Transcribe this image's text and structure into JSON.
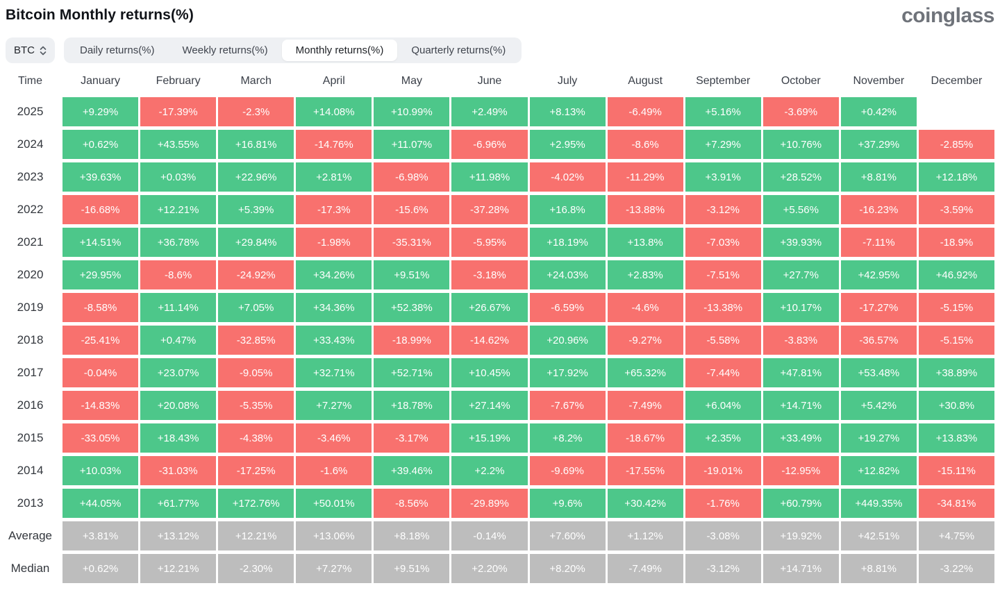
{
  "header": {
    "title": "Bitcoin Monthly returns(%)",
    "logo": "coinglass"
  },
  "controls": {
    "coin": "BTC",
    "tabs": [
      {
        "label": "Daily returns(%)",
        "active": false
      },
      {
        "label": "Weekly returns(%)",
        "active": false
      },
      {
        "label": "Monthly returns(%)",
        "active": true
      },
      {
        "label": "Quarterly returns(%)",
        "active": false
      }
    ]
  },
  "colors": {
    "positive": "#4dc78a",
    "negative": "#f8716e",
    "summary": "#bdbdbd"
  },
  "table": {
    "time_header": "Time",
    "months": [
      "January",
      "February",
      "March",
      "April",
      "May",
      "June",
      "July",
      "August",
      "September",
      "October",
      "November",
      "December"
    ],
    "rows": [
      {
        "label": "2025",
        "type": "year",
        "values": [
          "+9.29%",
          "-17.39%",
          "-2.3%",
          "+14.08%",
          "+10.99%",
          "+2.49%",
          "+8.13%",
          "-6.49%",
          "+5.16%",
          "-3.69%",
          "+0.42%",
          null
        ]
      },
      {
        "label": "2024",
        "type": "year",
        "values": [
          "+0.62%",
          "+43.55%",
          "+16.81%",
          "-14.76%",
          "+11.07%",
          "-6.96%",
          "+2.95%",
          "-8.6%",
          "+7.29%",
          "+10.76%",
          "+37.29%",
          "-2.85%"
        ]
      },
      {
        "label": "2023",
        "type": "year",
        "values": [
          "+39.63%",
          "+0.03%",
          "+22.96%",
          "+2.81%",
          "-6.98%",
          "+11.98%",
          "-4.02%",
          "-11.29%",
          "+3.91%",
          "+28.52%",
          "+8.81%",
          "+12.18%"
        ]
      },
      {
        "label": "2022",
        "type": "year",
        "values": [
          "-16.68%",
          "+12.21%",
          "+5.39%",
          "-17.3%",
          "-15.6%",
          "-37.28%",
          "+16.8%",
          "-13.88%",
          "-3.12%",
          "+5.56%",
          "-16.23%",
          "-3.59%"
        ]
      },
      {
        "label": "2021",
        "type": "year",
        "values": [
          "+14.51%",
          "+36.78%",
          "+29.84%",
          "-1.98%",
          "-35.31%",
          "-5.95%",
          "+18.19%",
          "+13.8%",
          "-7.03%",
          "+39.93%",
          "-7.11%",
          "-18.9%"
        ]
      },
      {
        "label": "2020",
        "type": "year",
        "values": [
          "+29.95%",
          "-8.6%",
          "-24.92%",
          "+34.26%",
          "+9.51%",
          "-3.18%",
          "+24.03%",
          "+2.83%",
          "-7.51%",
          "+27.7%",
          "+42.95%",
          "+46.92%"
        ]
      },
      {
        "label": "2019",
        "type": "year",
        "values": [
          "-8.58%",
          "+11.14%",
          "+7.05%",
          "+34.36%",
          "+52.38%",
          "+26.67%",
          "-6.59%",
          "-4.6%",
          "-13.38%",
          "+10.17%",
          "-17.27%",
          "-5.15%"
        ]
      },
      {
        "label": "2018",
        "type": "year",
        "values": [
          "-25.41%",
          "+0.47%",
          "-32.85%",
          "+33.43%",
          "-18.99%",
          "-14.62%",
          "+20.96%",
          "-9.27%",
          "-5.58%",
          "-3.83%",
          "-36.57%",
          "-5.15%"
        ]
      },
      {
        "label": "2017",
        "type": "year",
        "values": [
          "-0.04%",
          "+23.07%",
          "-9.05%",
          "+32.71%",
          "+52.71%",
          "+10.45%",
          "+17.92%",
          "+65.32%",
          "-7.44%",
          "+47.81%",
          "+53.48%",
          "+38.89%"
        ]
      },
      {
        "label": "2016",
        "type": "year",
        "values": [
          "-14.83%",
          "+20.08%",
          "-5.35%",
          "+7.27%",
          "+18.78%",
          "+27.14%",
          "-7.67%",
          "-7.49%",
          "+6.04%",
          "+14.71%",
          "+5.42%",
          "+30.8%"
        ]
      },
      {
        "label": "2015",
        "type": "year",
        "values": [
          "-33.05%",
          "+18.43%",
          "-4.38%",
          "-3.46%",
          "-3.17%",
          "+15.19%",
          "+8.2%",
          "-18.67%",
          "+2.35%",
          "+33.49%",
          "+19.27%",
          "+13.83%"
        ]
      },
      {
        "label": "2014",
        "type": "year",
        "values": [
          "+10.03%",
          "-31.03%",
          "-17.25%",
          "-1.6%",
          "+39.46%",
          "+2.2%",
          "-9.69%",
          "-17.55%",
          "-19.01%",
          "-12.95%",
          "+12.82%",
          "-15.11%"
        ]
      },
      {
        "label": "2013",
        "type": "year",
        "values": [
          "+44.05%",
          "+61.77%",
          "+172.76%",
          "+50.01%",
          "-8.56%",
          "-29.89%",
          "+9.6%",
          "+30.42%",
          "-1.76%",
          "+60.79%",
          "+449.35%",
          "-34.81%"
        ]
      },
      {
        "label": "Average",
        "type": "summary",
        "values": [
          "+3.81%",
          "+13.12%",
          "+12.21%",
          "+13.06%",
          "+8.18%",
          "-0.14%",
          "+7.60%",
          "+1.12%",
          "-3.08%",
          "+19.92%",
          "+42.51%",
          "+4.75%"
        ]
      },
      {
        "label": "Median",
        "type": "summary",
        "values": [
          "+0.62%",
          "+12.21%",
          "-2.30%",
          "+7.27%",
          "+9.51%",
          "+2.20%",
          "+8.20%",
          "-7.49%",
          "-3.12%",
          "+14.71%",
          "+8.81%",
          "-3.22%"
        ]
      }
    ]
  }
}
